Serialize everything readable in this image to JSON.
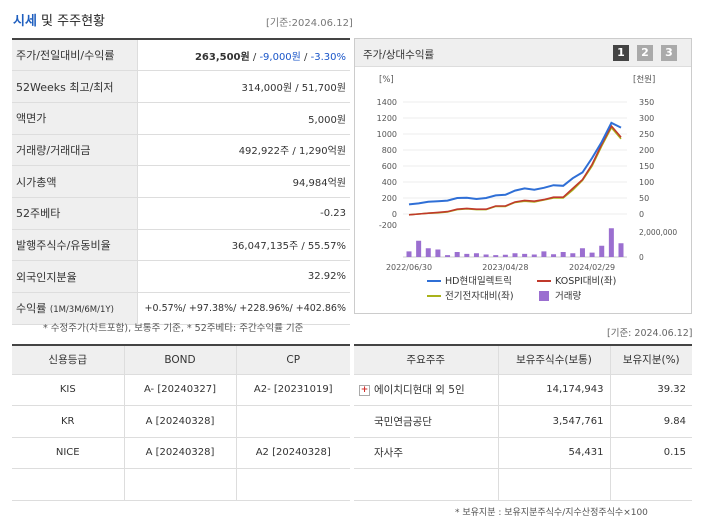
{
  "header": {
    "title_main": "시세",
    "title_rest": " 및 주주현황",
    "date": "[기준:2024.06.12]"
  },
  "summary": [
    {
      "label": "주가/전일대비/수익률",
      "v1": "263,500원",
      "sep1": " / ",
      "v2": "-9,000원",
      "sep2": " / ",
      "v3": "-3.30%"
    },
    {
      "label": "52Weeks 최고/최저",
      "value": "314,000원 / 51,700원"
    },
    {
      "label": "액면가",
      "value": "5,000원"
    },
    {
      "label": "거래량/거래대금",
      "value": "492,922주 / 1,290억원"
    },
    {
      "label": "시가총액",
      "value": "94,984억원"
    },
    {
      "label": "52주베타",
      "value": "-0.23"
    },
    {
      "label": "발행주식수/유동비율",
      "value": "36,047,135주 / 55.57%"
    },
    {
      "label": "외국인지분율",
      "value": "32.92%"
    },
    {
      "label": "수익률",
      "label_small": "(1M/3M/6M/1Y)",
      "value": "+0.57%/ +97.38%/ +228.96%/ +402.86%"
    }
  ],
  "note_left": "* 수정주가(차트포함), 보통주 기준, * 52주베타: 주간수익률 기준",
  "chart_panel": {
    "title": "주가/상대수익률",
    "pages": [
      "1",
      "2",
      "3"
    ]
  },
  "chart_data": {
    "type": "line",
    "left_axis_label": "[%]",
    "right_axis_label": "[천원]",
    "left_ticks": [
      "1400",
      "1200",
      "1000",
      "800",
      "600",
      "400",
      "200",
      "0",
      "-200"
    ],
    "right_ticks": [
      "350",
      "300",
      "250",
      "200",
      "150",
      "100",
      "50",
      "0"
    ],
    "volume_tick": "2,000,000",
    "volume_zero": "0",
    "x_labels": [
      "2022/06/30",
      "2023/04/28",
      "2024/02/29"
    ],
    "series": [
      {
        "name": "HD현대일렉트릭",
        "color": "#2f6fd6",
        "axis": "right",
        "values": [
          30,
          33,
          38,
          40,
          42,
          50,
          51,
          47,
          50,
          58,
          60,
          73,
          80,
          76,
          82,
          90,
          88,
          112,
          130,
          175,
          225,
          285,
          270
        ]
      },
      {
        "name": "KOSPI대비(좌)",
        "color": "#c0392b",
        "axis": "left",
        "values": [
          -10,
          0,
          10,
          20,
          30,
          60,
          70,
          60,
          60,
          100,
          100,
          150,
          170,
          160,
          180,
          210,
          210,
          320,
          430,
          620,
          870,
          1100,
          960
        ]
      },
      {
        "name": "전기전자대비(좌)",
        "color": "#a9b21a",
        "axis": "left",
        "values": [
          -10,
          0,
          10,
          15,
          25,
          55,
          65,
          55,
          55,
          95,
          95,
          145,
          160,
          150,
          175,
          200,
          200,
          300,
          420,
          600,
          850,
          1080,
          940
        ]
      },
      {
        "name": "거래량",
        "color": "#9b6fd0",
        "axis": "volume",
        "values": [
          450000,
          1300000,
          700000,
          600000,
          150000,
          400000,
          250000,
          300000,
          200000,
          150000,
          180000,
          300000,
          250000,
          200000,
          450000,
          220000,
          400000,
          300000,
          700000,
          350000,
          900000,
          2300000,
          1100000
        ]
      }
    ],
    "legend_position": "bottom"
  },
  "date_right": "[기준: 2024.06.12]",
  "credit": {
    "headers": [
      "신용등급",
      "BOND",
      "CP"
    ],
    "rows": [
      [
        "KIS",
        "A-  [20240327]",
        "A2-  [20231019]"
      ],
      [
        "KR",
        "A  [20240328]",
        ""
      ],
      [
        "NICE",
        "A  [20240328]",
        "A2  [20240328]"
      ],
      [
        "",
        "",
        ""
      ]
    ]
  },
  "holders": {
    "headers": [
      "주요주주",
      "보유주식수(보통)",
      "보유지분(%)"
    ],
    "rows": [
      [
        "에이치디현대 외 5인",
        "14,174,943",
        "39.32"
      ],
      [
        "국민연금공단",
        "3,547,761",
        "9.84"
      ],
      [
        "자사주",
        "54,431",
        "0.15"
      ],
      [
        "",
        "",
        ""
      ]
    ],
    "expand_icon": "plus-icon"
  },
  "note_right": "* 보유지분 : 보유지분주식수/지수산정주식수×100"
}
